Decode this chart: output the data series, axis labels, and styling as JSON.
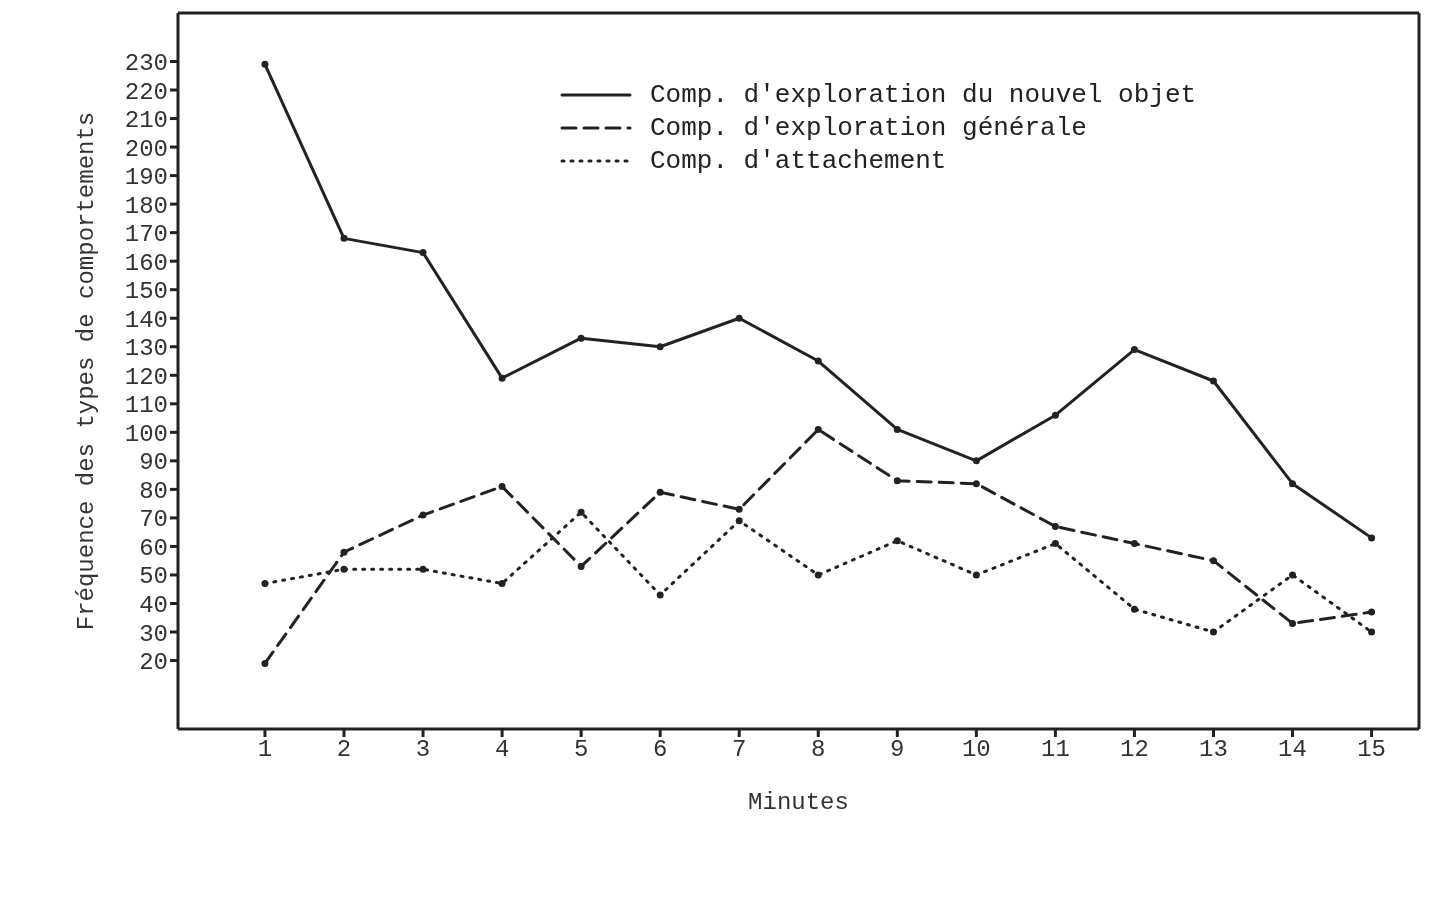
{
  "chart_data": {
    "type": "line",
    "xlabel": "Minutes",
    "ylabel": "Fréquence des types de comportements",
    "x": [
      1,
      2,
      3,
      4,
      5,
      6,
      7,
      8,
      9,
      10,
      11,
      12,
      13,
      14,
      15
    ],
    "series": [
      {
        "name": "Comp. d'exploration du nouvel objet",
        "color": "#222222",
        "line_style": "solid",
        "values": [
          229,
          168,
          163,
          119,
          133,
          130,
          140,
          125,
          101,
          90,
          106,
          129,
          118,
          82,
          63
        ]
      },
      {
        "name": "Comp. d'exploration générale",
        "color": "#222222",
        "line_style": "dashed",
        "values": [
          19,
          58,
          71,
          81,
          53,
          79,
          73,
          101,
          83,
          82,
          67,
          61,
          55,
          33,
          37
        ]
      },
      {
        "name": "Comp. d'attachement",
        "color": "#222222",
        "line_style": "dotted",
        "values": [
          47,
          52,
          52,
          47,
          72,
          43,
          69,
          50,
          62,
          50,
          61,
          38,
          30,
          50,
          30
        ]
      }
    ],
    "xlim": [
      -0.1,
      15.6
    ],
    "ylim": [
      -4,
      247
    ],
    "xticks": [
      1,
      2,
      3,
      4,
      5,
      6,
      7,
      8,
      9,
      10,
      11,
      12,
      13,
      14,
      15
    ],
    "yticks": [
      20,
      30,
      40,
      50,
      60,
      70,
      80,
      90,
      100,
      110,
      120,
      130,
      140,
      150,
      160,
      170,
      180,
      190,
      200,
      210,
      220,
      230
    ],
    "grid": false,
    "legend": "top right",
    "marker": "circle"
  }
}
